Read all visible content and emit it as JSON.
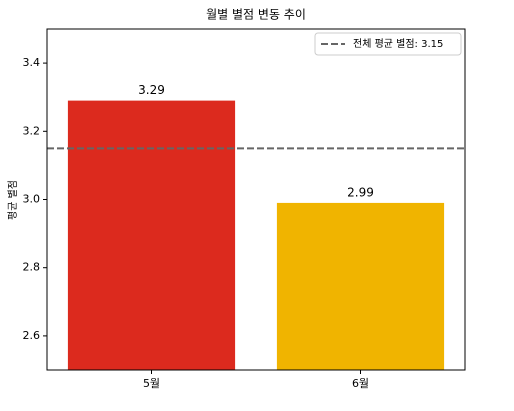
{
  "chart_data": {
    "type": "bar",
    "title": "월별 별점 변동 추이",
    "ylabel": "평균 별점",
    "categories": [
      "5월",
      "6월"
    ],
    "values": [
      3.29,
      2.99
    ],
    "colors": [
      "#dc2a1e",
      "#f0b400"
    ],
    "ylim": [
      2.5,
      3.5
    ],
    "yticks": [
      2.6,
      2.8,
      {
        "value": 3,
        "label": "3.0"
      },
      3.2,
      3.4
    ],
    "reference_line": {
      "value": 3.15,
      "label": "전체 평균 별점: 3.15",
      "color": "#666666"
    },
    "legend": "upper right"
  }
}
